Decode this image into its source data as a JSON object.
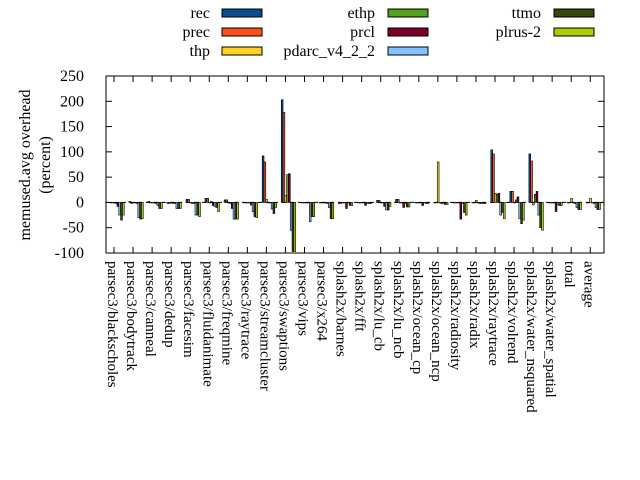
{
  "chart_data": {
    "type": "bar",
    "title": "",
    "xlabel": "",
    "ylabel": "memused.avg overhead\n(percent)",
    "ylabel_lines": [
      "memused.avg overhead",
      "(percent)"
    ],
    "ylim": [
      -100,
      250
    ],
    "yticks": [
      -100,
      -50,
      0,
      50,
      100,
      150,
      200,
      250
    ],
    "grid": false,
    "legend_position": "top",
    "categories": [
      "parsec3/blackscholes",
      "parsec3/bodytrack",
      "parsec3/canneal",
      "parsec3/dedup",
      "parsec3/facesim",
      "parsec3/fluidanimate",
      "parsec3/freqmine",
      "parsec3/raytrace",
      "parsec3/streamcluster",
      "parsec3/swaptions",
      "parsec3/vips",
      "parsec3/x264",
      "splash2x/barnes",
      "splash2x/fft",
      "splash2x/lu_cb",
      "splash2x/lu_ncb",
      "splash2x/ocean_cp",
      "splash2x/ocean_ncp",
      "splash2x/radiosity",
      "splash2x/radix",
      "splash2x/raytrace",
      "splash2x/volrend",
      "splash2x/water_nsquared",
      "splash2x/water_spatial",
      "total",
      "average"
    ],
    "series": [
      {
        "name": "rec",
        "color": "#0b4b8c",
        "values": [
          -1,
          2,
          2,
          -2,
          6,
          8,
          5,
          -1,
          92,
          203,
          -1,
          -1,
          -2,
          0,
          4,
          6,
          -1,
          0,
          -1,
          0,
          104,
          22,
          96,
          0,
          0,
          0
        ]
      },
      {
        "name": "prec",
        "color": "#ff4e1a",
        "values": [
          -1,
          -2,
          -1,
          -2,
          6,
          8,
          5,
          -1,
          80,
          178,
          -1,
          -1,
          -2,
          0,
          4,
          6,
          -1,
          0,
          -1,
          0,
          96,
          22,
          82,
          0,
          0,
          0
        ]
      },
      {
        "name": "thp",
        "color": "#ffd31f",
        "values": [
          0,
          0,
          0,
          0,
          0,
          0,
          0,
          0,
          6,
          14,
          0,
          0,
          0,
          0,
          0,
          0,
          0,
          80,
          0,
          4,
          18,
          0,
          -5,
          0,
          8,
          8
        ]
      },
      {
        "name": "ethp",
        "color": "#55a021",
        "values": [
          -2,
          0,
          0,
          -2,
          -2,
          2,
          -2,
          -1,
          0,
          55,
          0,
          -1,
          -1,
          0,
          0,
          0,
          0,
          0,
          0,
          0,
          16,
          5,
          16,
          0,
          0,
          0
        ]
      },
      {
        "name": "prcl",
        "color": "#7a0028",
        "values": [
          -8,
          -2,
          -2,
          -2,
          -2,
          -6,
          -12,
          -5,
          -1,
          57,
          -1,
          -2,
          -12,
          -6,
          -8,
          -10,
          -6,
          -2,
          -33,
          -2,
          18,
          11,
          22,
          -18,
          -2,
          -2
        ]
      },
      {
        "name": "pdarc_v4_2_2",
        "color": "#80c4ff",
        "values": [
          -25,
          -30,
          -6,
          -12,
          -25,
          -8,
          -33,
          -18,
          -13,
          -55,
          -38,
          -10,
          -1,
          -2,
          -15,
          -2,
          0,
          -2,
          -2,
          -2,
          -25,
          -32,
          -25,
          -5,
          -10,
          -10
        ]
      },
      {
        "name": "ttmo",
        "color": "#354510",
        "values": [
          -35,
          -33,
          -12,
          -12,
          -25,
          -10,
          -33,
          -28,
          -22,
          -97,
          -28,
          -32,
          -6,
          -2,
          -15,
          -9,
          -2,
          -4,
          -20,
          -2,
          -20,
          -42,
          -50,
          -6,
          -14,
          -14
        ]
      },
      {
        "name": "plrus-2",
        "color": "#aacc00",
        "values": [
          -25,
          -32,
          -12,
          -12,
          -28,
          -18,
          -33,
          -30,
          -10,
          -97,
          -28,
          -32,
          -6,
          -2,
          -8,
          -9,
          -2,
          -4,
          -25,
          -2,
          -32,
          -35,
          -55,
          -6,
          -14,
          -14
        ]
      }
    ]
  }
}
